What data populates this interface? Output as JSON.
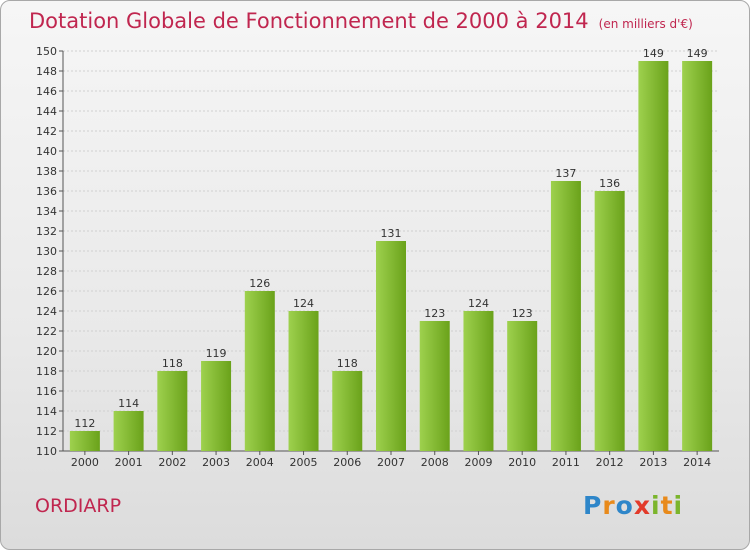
{
  "header": {
    "title": "Dotation Globale de Fonctionnement de 2000 à 2014",
    "subtitle": "(en milliers d'€)"
  },
  "footer": {
    "commune": "ORDIARP",
    "logo_text": "Proxiti"
  },
  "colors": {
    "title": "#c0264f",
    "bar_light": "#9ed14e",
    "bar_dark": "#6aa21a"
  },
  "chart_data": {
    "type": "bar",
    "title": "Dotation Globale de Fonctionnement de 2000 à 2014",
    "subtitle": "(en milliers d'€)",
    "categories": [
      "2000",
      "2001",
      "2002",
      "2003",
      "2004",
      "2005",
      "2006",
      "2007",
      "2008",
      "2009",
      "2010",
      "2011",
      "2012",
      "2013",
      "2014"
    ],
    "values": [
      112,
      114,
      118,
      119,
      126,
      124,
      118,
      131,
      123,
      124,
      123,
      137,
      136,
      149,
      149
    ],
    "data_labels": [
      "112",
      "114",
      "118",
      "119",
      "126",
      "124",
      "118",
      "131",
      "123",
      "124",
      "123",
      "137",
      "136",
      "149",
      "149"
    ],
    "ylim": [
      110,
      150
    ],
    "yticks": [
      110,
      112,
      114,
      116,
      118,
      120,
      122,
      124,
      126,
      128,
      130,
      132,
      134,
      136,
      138,
      140,
      142,
      144,
      146,
      148,
      150
    ],
    "grid": true,
    "xlabel": "",
    "ylabel": ""
  }
}
